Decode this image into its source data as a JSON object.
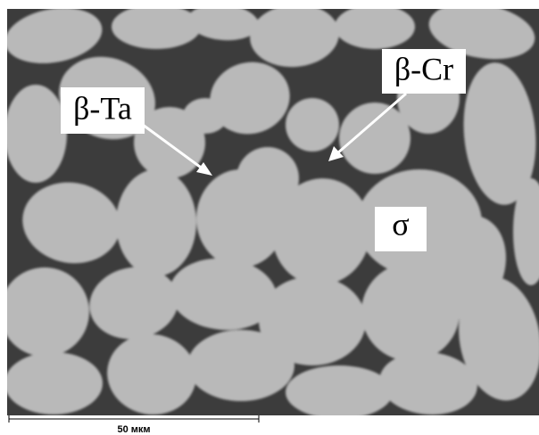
{
  "image": {
    "labels": [
      "β-Ta",
      "β-Cr",
      "σ"
    ],
    "scale_bar": {
      "label": "50 мкм"
    }
  }
}
